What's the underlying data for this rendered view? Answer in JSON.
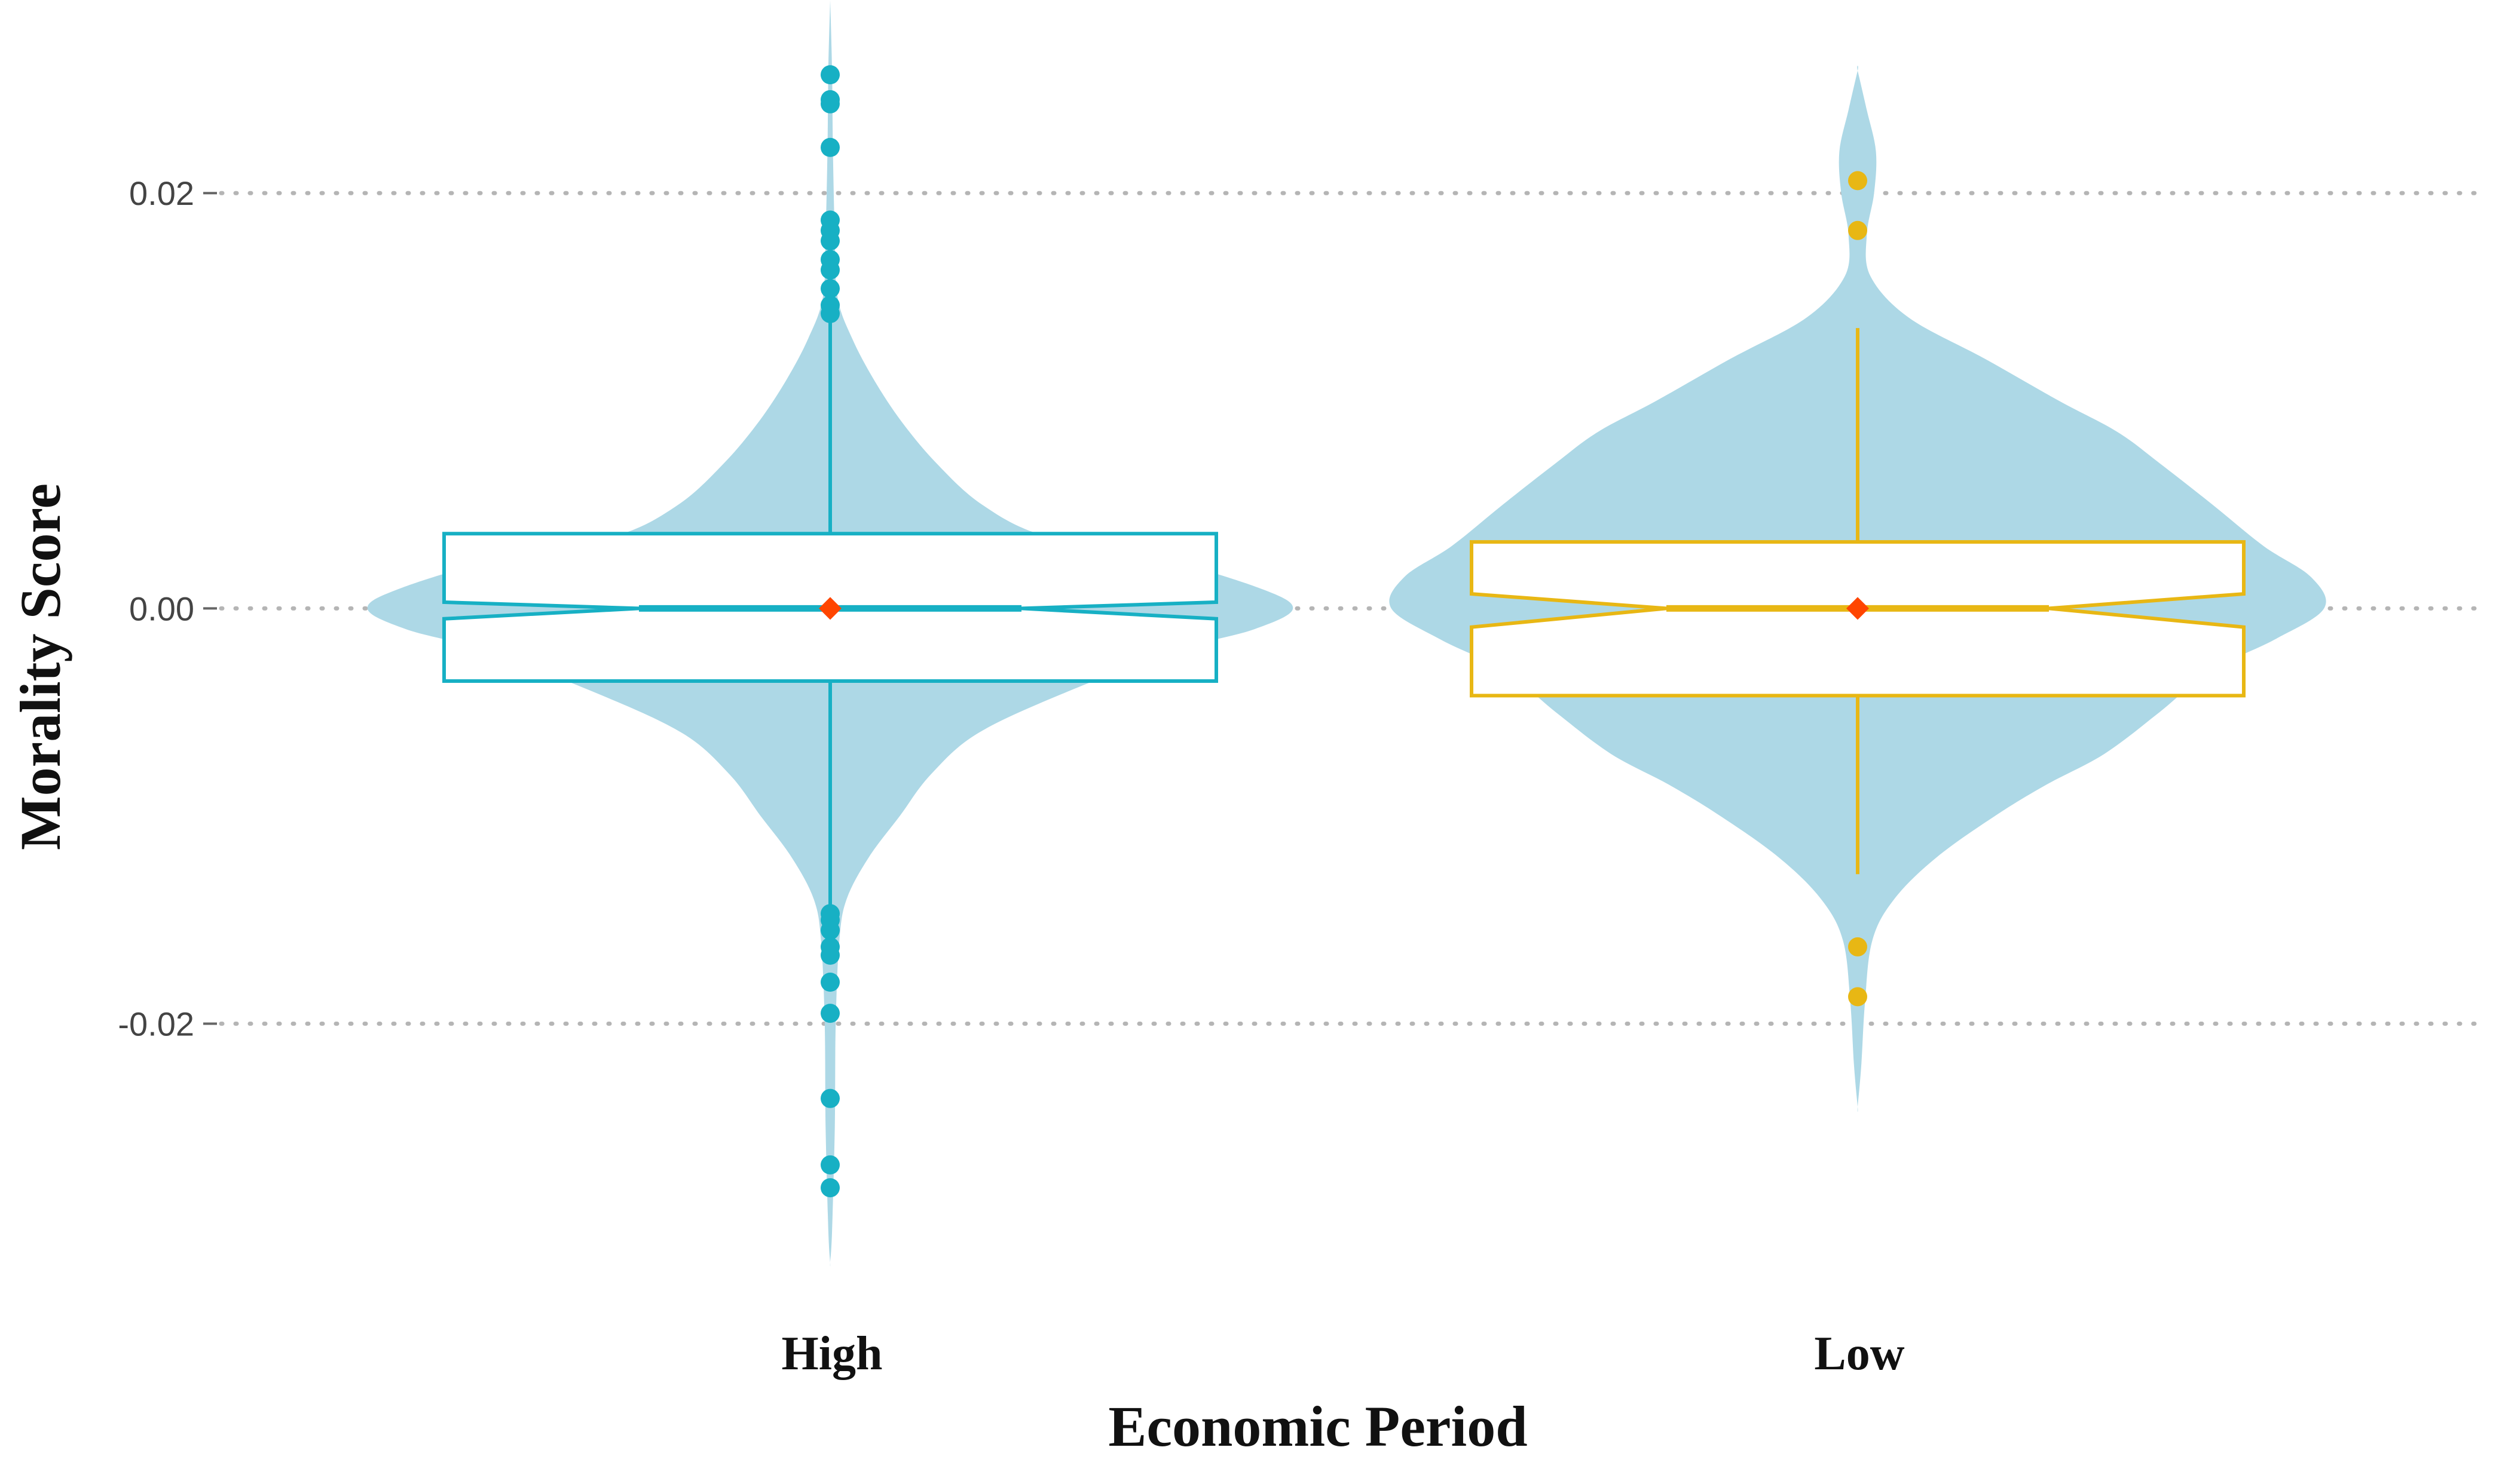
{
  "chart_data": {
    "type": "violin-box",
    "title": "",
    "xlabel": "Economic Period",
    "ylabel": "Morality Score",
    "ylim": [
      -0.0325,
      0.0293
    ],
    "yticks": [
      0.02,
      0.0,
      -0.02
    ],
    "ytick_labels": [
      "0.02",
      "0.00",
      "-0.02"
    ],
    "grid": "horizontal dotted",
    "violin_color": "#ADD8E6",
    "mean_marker_color": "#FF4500",
    "groups": [
      {
        "label": "High",
        "color": "#17B0C4",
        "box": {
          "q1": -0.0035,
          "median": 0.0,
          "q3": 0.0036,
          "notch_low": -0.0005,
          "notch_high": 0.0003,
          "whisker_low": -0.0145,
          "whisker_high": 0.0145
        },
        "mean": 0.0,
        "outliers": [
          0.0257,
          0.0245,
          0.0243,
          0.0222,
          0.0187,
          0.0182,
          0.0177,
          0.0168,
          0.0163,
          0.0154,
          0.0146,
          0.0142,
          -0.0147,
          -0.015,
          -0.0155,
          -0.0163,
          -0.0167,
          -0.018,
          -0.0195,
          -0.0236,
          -0.0268,
          -0.0279
        ],
        "violin": [
          [
            0.0293,
            0.0
          ],
          [
            0.026,
            0.001
          ],
          [
            0.022,
            0.0015
          ],
          [
            0.018,
            0.0025
          ],
          [
            0.015,
            0.004
          ],
          [
            0.013,
            0.012
          ],
          [
            0.011,
            0.024
          ],
          [
            0.009,
            0.039
          ],
          [
            0.007,
            0.058
          ],
          [
            0.005,
            0.083
          ],
          [
            0.0035,
            0.117
          ],
          [
            0.0025,
            0.177
          ],
          [
            0.001,
            0.234
          ],
          [
            0.0,
            0.253
          ],
          [
            -0.001,
            0.232
          ],
          [
            -0.002,
            0.19
          ],
          [
            -0.004,
            0.13
          ],
          [
            -0.006,
            0.081
          ],
          [
            -0.008,
            0.055
          ],
          [
            -0.01,
            0.038
          ],
          [
            -0.012,
            0.021
          ],
          [
            -0.014,
            0.009
          ],
          [
            -0.016,
            0.005
          ],
          [
            -0.02,
            0.003
          ],
          [
            -0.025,
            0.0025
          ],
          [
            -0.03,
            0.001
          ],
          [
            -0.0315,
            0.0
          ]
        ]
      },
      {
        "label": "Low",
        "color": "#E8B714",
        "box": {
          "q1": -0.0042,
          "median": 0.0,
          "q3": 0.0032,
          "notch_low": -0.0009,
          "notch_high": 0.0007,
          "whisker_low": -0.0128,
          "whisker_high": 0.0135
        },
        "mean": 0.0,
        "outliers": [
          0.0206,
          0.0182,
          -0.0163,
          -0.0187
        ],
        "violin": [
          [
            0.0259,
            0.0
          ],
          [
            0.024,
            0.005
          ],
          [
            0.022,
            0.01
          ],
          [
            0.02,
            0.009
          ],
          [
            0.018,
            0.005
          ],
          [
            0.016,
            0.007
          ],
          [
            0.014,
            0.028
          ],
          [
            0.012,
            0.07
          ],
          [
            0.01,
            0.11
          ],
          [
            0.0085,
            0.142
          ],
          [
            0.007,
            0.165
          ],
          [
            0.005,
            0.194
          ],
          [
            0.003,
            0.222
          ],
          [
            0.0015,
            0.248
          ],
          [
            0.0,
            0.255
          ],
          [
            -0.0015,
            0.228
          ],
          [
            -0.003,
            0.193
          ],
          [
            -0.005,
            0.165
          ],
          [
            -0.007,
            0.135
          ],
          [
            -0.0085,
            0.103
          ],
          [
            -0.01,
            0.075
          ],
          [
            -0.012,
            0.043
          ],
          [
            -0.014,
            0.02
          ],
          [
            -0.016,
            0.008
          ],
          [
            -0.019,
            0.004
          ],
          [
            -0.022,
            0.002
          ],
          [
            -0.024,
            0.0
          ]
        ]
      }
    ]
  }
}
